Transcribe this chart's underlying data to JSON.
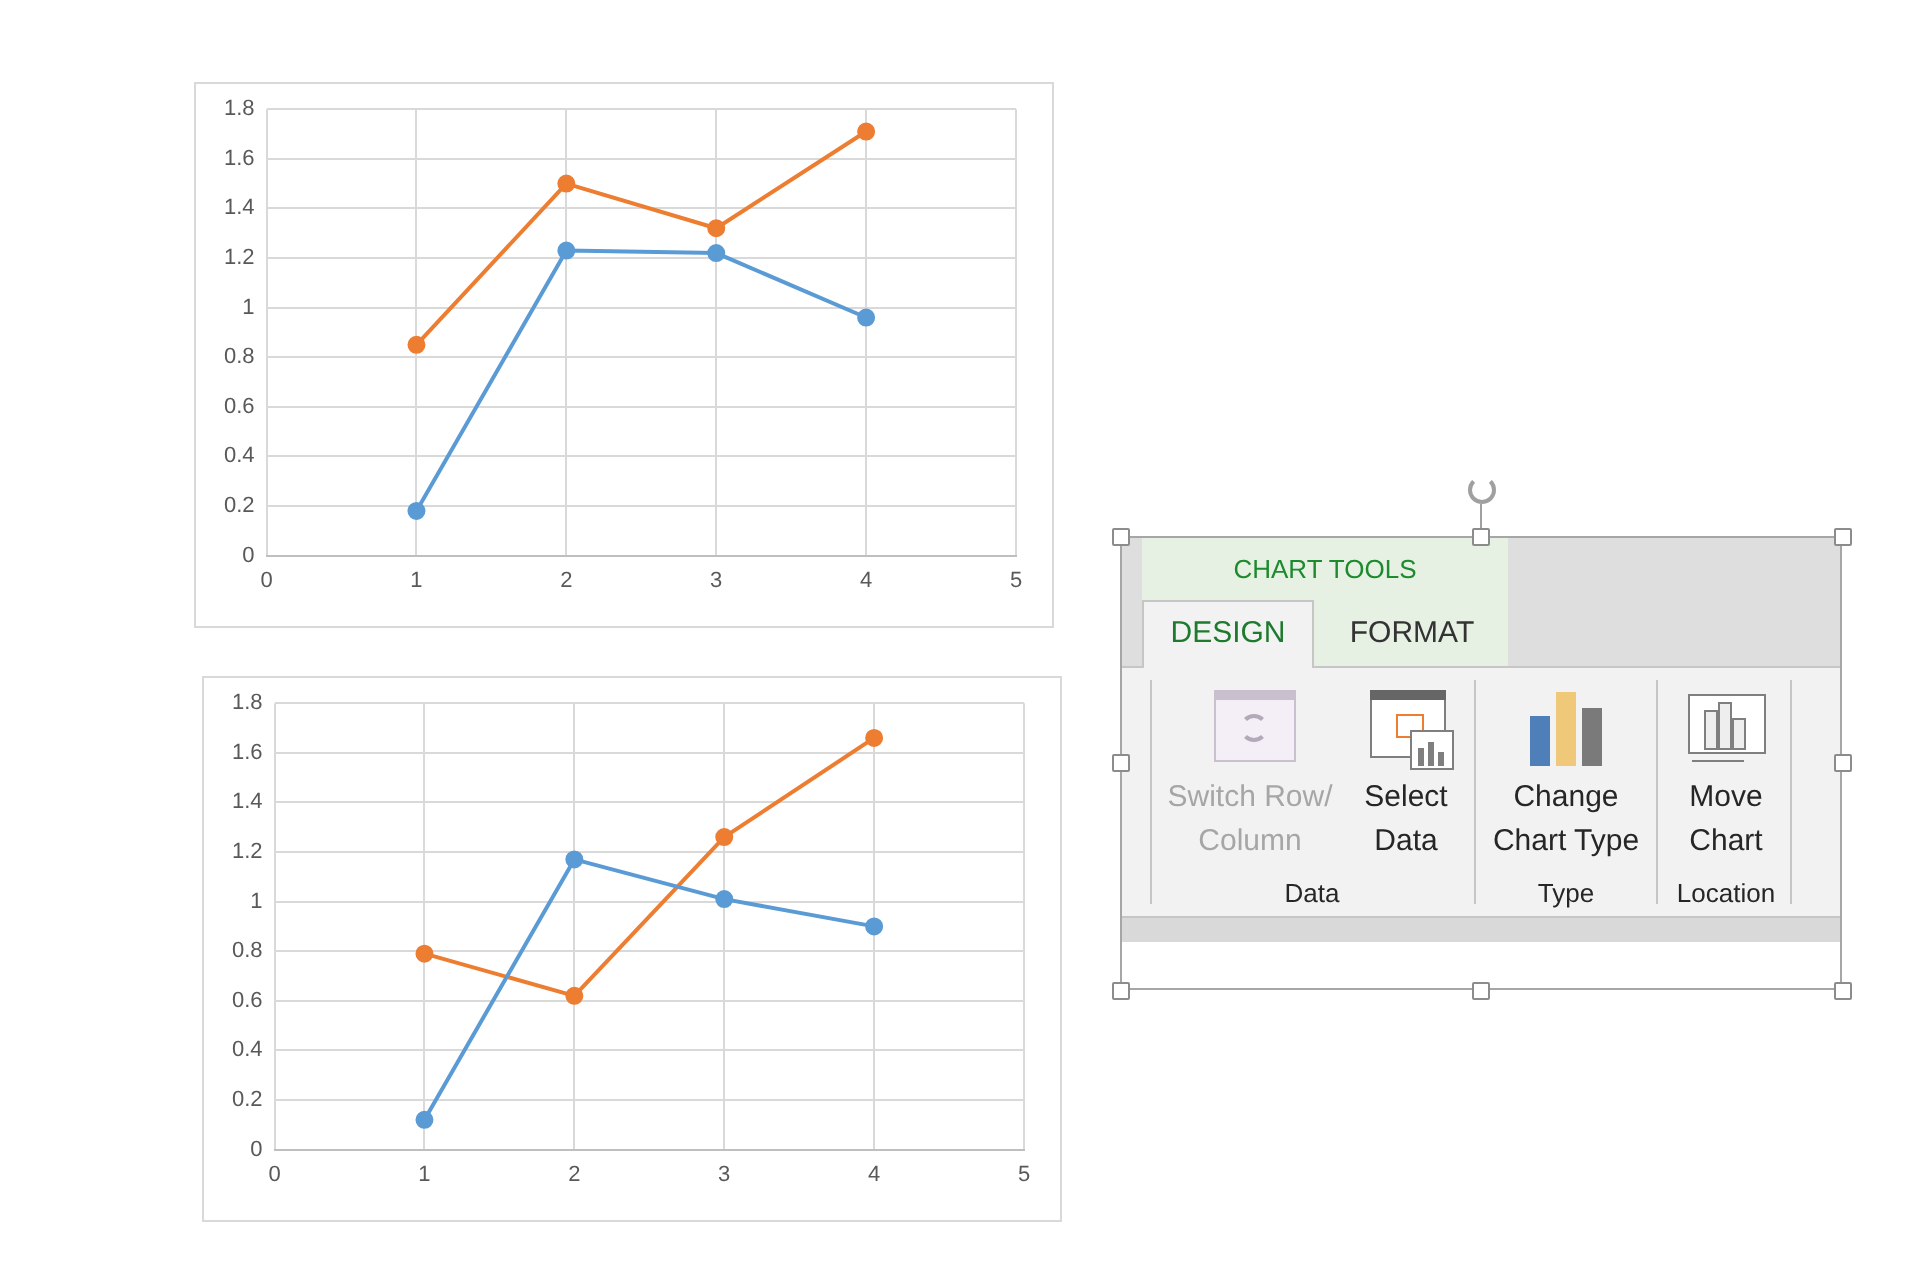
{
  "chart_data": [
    {
      "type": "line",
      "x": [
        1,
        2,
        3,
        4
      ],
      "marker": "circle",
      "grid": true,
      "legend": false,
      "xlim": [
        0,
        5
      ],
      "xticks": [
        0,
        1,
        2,
        3,
        4,
        5
      ],
      "ylim": [
        0,
        1.8
      ],
      "yticks": [
        0,
        0.2,
        0.4,
        0.6,
        0.8,
        1,
        1.2,
        1.4,
        1.6,
        1.8
      ],
      "series": [
        {
          "color": "#5b9bd5",
          "values": [
            0.18,
            1.23,
            1.22,
            0.96
          ]
        },
        {
          "color": "#ed7d31",
          "values": [
            0.85,
            1.5,
            1.32,
            1.71
          ]
        }
      ]
    },
    {
      "type": "line",
      "x": [
        1,
        2,
        3,
        4
      ],
      "marker": "circle",
      "grid": true,
      "legend": false,
      "xlim": [
        0,
        5
      ],
      "xticks": [
        0,
        1,
        2,
        3,
        4,
        5
      ],
      "ylim": [
        0,
        1.8
      ],
      "yticks": [
        0,
        0.2,
        0.4,
        0.6,
        0.8,
        1,
        1.2,
        1.4,
        1.6,
        1.8
      ],
      "series": [
        {
          "color": "#5b9bd5",
          "values": [
            0.12,
            1.17,
            1.01,
            0.9
          ]
        },
        {
          "color": "#ed7d31",
          "values": [
            0.79,
            0.62,
            1.26,
            1.66
          ]
        }
      ]
    },
    {
      "type": "other",
      "annotations": [
        "CHART TOOLS",
        "DESIGN",
        "FORMAT",
        "Switch Row/ Column",
        "Select Data",
        "Change Chart Type",
        "Move Chart",
        "Data",
        "Type",
        "Location"
      ]
    }
  ]
}
